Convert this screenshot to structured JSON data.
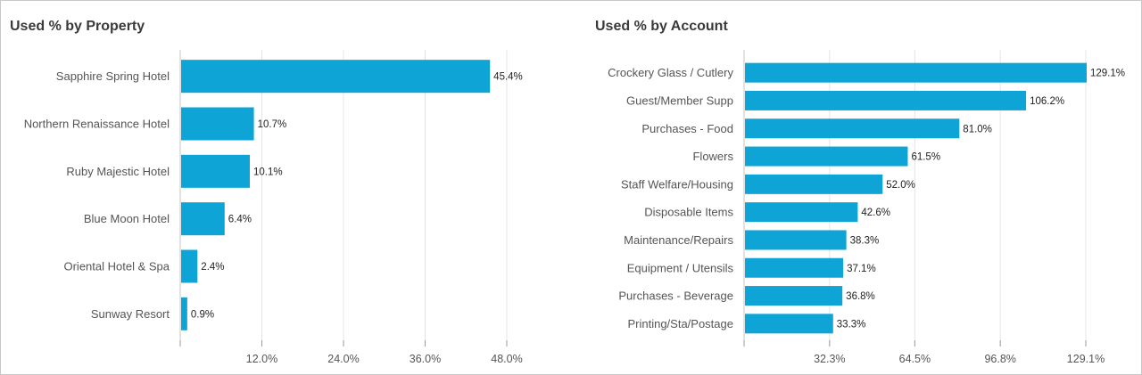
{
  "charts": [
    {
      "title": "Used % by Property",
      "chart_data": {
        "type": "bar",
        "orientation": "horizontal",
        "title": "Used % by Property",
        "xlabel": "",
        "ylabel": "",
        "categories": [
          "Sapphire Spring Hotel",
          "Northern Renaissance Hotel",
          "Ruby Majestic Hotel",
          "Blue Moon Hotel",
          "Oriental Hotel & Spa",
          "Sunway Resort"
        ],
        "values": [
          45.4,
          10.7,
          10.1,
          6.4,
          2.4,
          0.9
        ],
        "value_labels": [
          "45.4%",
          "10.7%",
          "10.1%",
          "6.4%",
          "2.4%",
          "0.9%"
        ],
        "xlim": [
          0,
          48.0
        ],
        "xticks": [
          12.0,
          24.0,
          36.0,
          48.0
        ],
        "xtick_labels": [
          "12.0%",
          "24.0%",
          "36.0%",
          "48.0%"
        ],
        "grid": true,
        "bar_color": "#0ea5d6"
      }
    },
    {
      "title": "Used % by Account",
      "chart_data": {
        "type": "bar",
        "orientation": "horizontal",
        "title": "Used % by Account",
        "xlabel": "",
        "ylabel": "",
        "categories": [
          "Crockery Glass / Cutlery",
          "Guest/Member Supp",
          "Purchases - Food",
          "Flowers",
          "Staff Welfare/Housing",
          "Disposable Items",
          "Maintenance/Repairs",
          "Equipment / Utensils",
          "Purchases - Beverage",
          "Printing/Sta/Postage"
        ],
        "values": [
          129.1,
          106.2,
          81.0,
          61.5,
          52.0,
          42.6,
          38.3,
          37.1,
          36.8,
          33.3
        ],
        "value_labels": [
          "129.1%",
          "106.2%",
          "81.0%",
          "61.5%",
          "52.0%",
          "42.6%",
          "38.3%",
          "37.1%",
          "36.8%",
          "33.3%"
        ],
        "xlim": [
          0,
          129.1
        ],
        "xticks": [
          32.3,
          64.5,
          96.8,
          129.1
        ],
        "xtick_labels": [
          "32.3%",
          "64.5%",
          "96.8%",
          "129.1%"
        ],
        "grid": true,
        "bar_color": "#0ea5d6"
      }
    }
  ]
}
